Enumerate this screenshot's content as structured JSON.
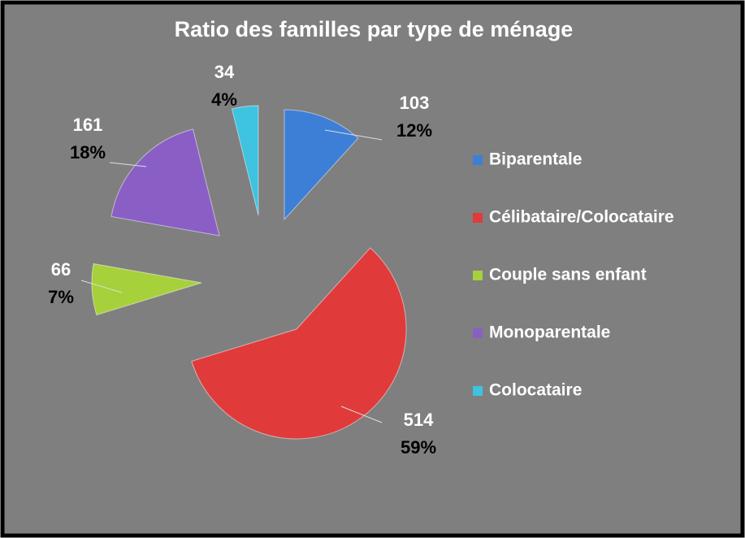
{
  "chart_data": {
    "type": "pie",
    "title": "Ratio des familles par type de ménage",
    "categories": [
      "Biparentale",
      "Célibataire/Colocataire",
      "Couple sans enfant",
      "Monoparentale",
      "Colocataire"
    ],
    "values": [
      103,
      514,
      66,
      161,
      34
    ],
    "percent_labels": [
      "12%",
      "59%",
      "7%",
      "18%",
      "4%"
    ],
    "colors": [
      "#3d7fd6",
      "#e03a3a",
      "#a6d13a",
      "#8a5fc5",
      "#3ec3e0"
    ],
    "legend": "right"
  }
}
